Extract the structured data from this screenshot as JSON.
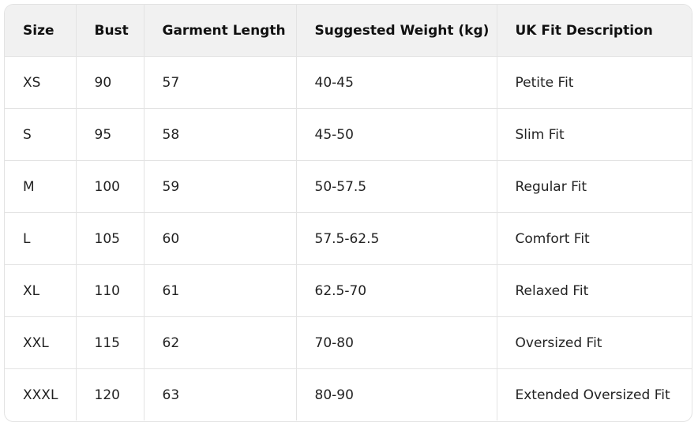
{
  "table": {
    "headers": [
      "Size",
      "Bust",
      "Garment Length",
      "Suggested Weight (kg)",
      "UK Fit Description"
    ],
    "rows": [
      [
        "XS",
        "90",
        "57",
        "40-45",
        "Petite Fit"
      ],
      [
        "S",
        "95",
        "58",
        "45-50",
        "Slim Fit"
      ],
      [
        "M",
        "100",
        "59",
        "50-57.5",
        "Regular Fit"
      ],
      [
        "L",
        "105",
        "60",
        "57.5-62.5",
        "Comfort Fit"
      ],
      [
        "XL",
        "110",
        "61",
        "62.5-70",
        "Relaxed Fit"
      ],
      [
        "XXL",
        "115",
        "62",
        "70-80",
        "Oversized Fit"
      ],
      [
        "XXXL",
        "120",
        "63",
        "80-90",
        "Extended Oversized Fit"
      ]
    ]
  },
  "colors": {
    "header_bg": "#f1f1f1",
    "border": "#e3e3e3"
  }
}
